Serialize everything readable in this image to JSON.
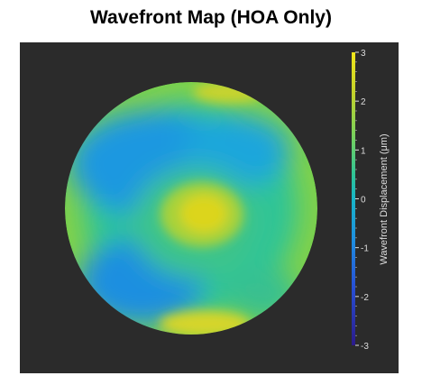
{
  "chart_data": {
    "type": "heatmap",
    "title": "Wavefront Map (HOA Only)",
    "colorbar": {
      "label": "Wavefront Displacement (μm)",
      "range": [
        -3,
        3
      ],
      "ticks": [
        3,
        2,
        1,
        0,
        -1,
        -2,
        -3
      ],
      "tick_labels": [
        "3",
        "2",
        "1",
        "0",
        "-1",
        "-2",
        "-3"
      ],
      "colormap": [
        "#2b1a8a",
        "#2750d6",
        "#1e8fe0",
        "#17b5c7",
        "#2ec497",
        "#7bd15a",
        "#c2d12a",
        "#f0e51a"
      ]
    },
    "map": {
      "shape": "circular pupil",
      "center_value": 1.6,
      "center_label": "central yellow peak",
      "mid_ring_value": 0.2,
      "lower_left_value": -0.6,
      "upper_left_value": -0.7,
      "rim_value": 2.0,
      "background": "#2b2b2b"
    }
  }
}
